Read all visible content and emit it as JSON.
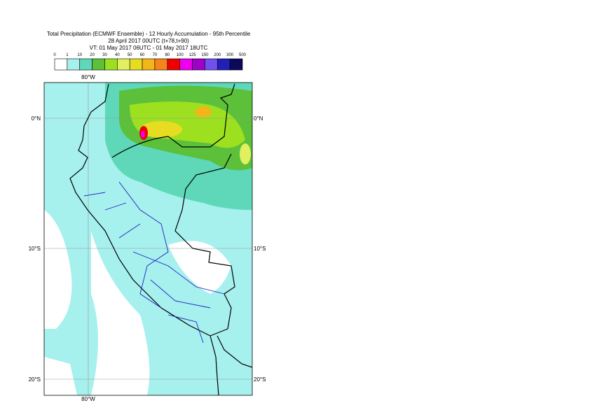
{
  "header": {
    "title": "Total Precipitation (ECMWF Ensemble) - 12 Hourly Accumulation - 95th Percentile",
    "line2": "28 April 2017 00UTC (t+78,t+90)",
    "line3": "VT: 01 May 2017 06UTC - 01 May 2017 18UTC"
  },
  "legend": {
    "levels": [
      0,
      1,
      10,
      20,
      30,
      40,
      50,
      60,
      70,
      80,
      100,
      125,
      150,
      200,
      300,
      500
    ],
    "colors": [
      "#ffffff",
      "#a6f0ee",
      "#5ed8b8",
      "#5cc03a",
      "#9ce020",
      "#e0f060",
      "#e6dc22",
      "#f2b61a",
      "#f6841a",
      "#f00000",
      "#ee00ee",
      "#a000c8",
      "#7050f0",
      "#2020b4",
      "#0a0a5a"
    ]
  },
  "map": {
    "lon_labels": [
      "80°W"
    ],
    "lat_labels": [
      "0°N",
      "10°S",
      "20°S"
    ]
  }
}
